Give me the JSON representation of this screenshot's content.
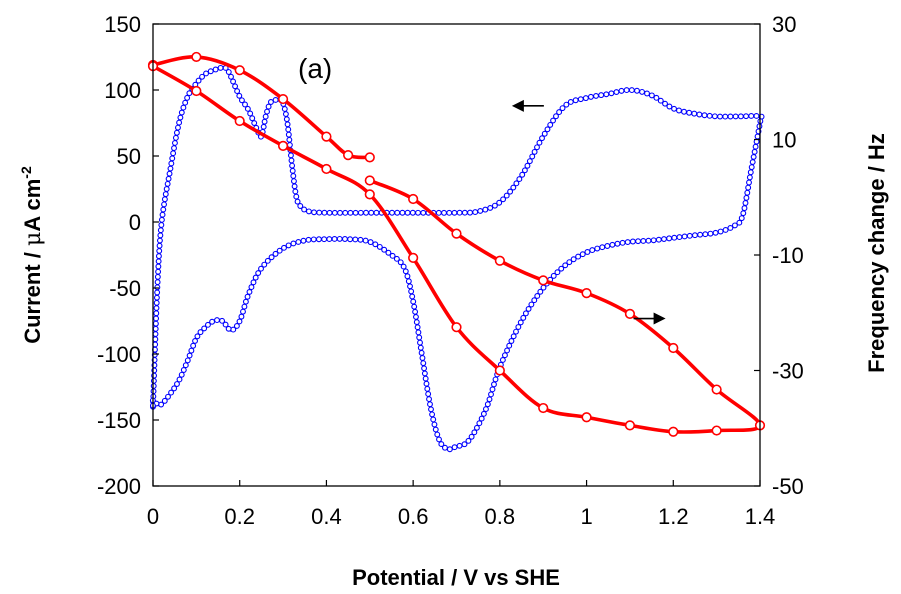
{
  "chart_data": {
    "type": "line",
    "panel_label": "(a)",
    "xlabel": "Potential / V vs SHE",
    "ylabel": {
      "prefix": "Current / ",
      "mu": "μ",
      "unit": "A cm",
      "sup": "-2"
    },
    "y2label": "Frequency change / Hz",
    "xlim": [
      0,
      1.4
    ],
    "ylim": [
      -200,
      150
    ],
    "y2lim": [
      -50,
      30
    ],
    "xticks": [
      "0",
      "0.2",
      "0.4",
      "0.6",
      "0.8",
      "1",
      "1.2",
      "1.4"
    ],
    "yticks": [
      "150",
      "100",
      "50",
      "0",
      "-50",
      "-100",
      "-150",
      "-200"
    ],
    "y2ticks": [
      "30",
      "10",
      "-10",
      "-30",
      "-50"
    ],
    "grid": false,
    "series": [
      {
        "axis": "left",
        "color": "#0000ff",
        "marker": "open-circle-small",
        "x": [
          0.0,
          0.01,
          0.02,
          0.04,
          0.06,
          0.08,
          0.1,
          0.12,
          0.14,
          0.16,
          0.17,
          0.18,
          0.2,
          0.22,
          0.24,
          0.25,
          0.26,
          0.27,
          0.28,
          0.29,
          0.3,
          0.31,
          0.32,
          0.33,
          0.34,
          0.36,
          0.4,
          0.5,
          0.6,
          0.7,
          0.75,
          0.8,
          0.85,
          0.9,
          0.95,
          1.0,
          1.05,
          1.1,
          1.15,
          1.2,
          1.25,
          1.3,
          1.35,
          1.4,
          1.4,
          1.38,
          1.36,
          1.34,
          1.3,
          1.25,
          1.2,
          1.15,
          1.1,
          1.05,
          1.0,
          0.95,
          0.9,
          0.85,
          0.8,
          0.77,
          0.74,
          0.72,
          0.7,
          0.68,
          0.66,
          0.64,
          0.62,
          0.6,
          0.58,
          0.55,
          0.5,
          0.45,
          0.4,
          0.35,
          0.3,
          0.25,
          0.22,
          0.2,
          0.18,
          0.16,
          0.14,
          0.12,
          0.1,
          0.08,
          0.06,
          0.04,
          0.02,
          0.01,
          0.0,
          0.0
        ],
        "y": [
          -140,
          -50,
          0,
          40,
          75,
          95,
          105,
          112,
          115,
          117,
          116,
          110,
          95,
          85,
          70,
          65,
          80,
          90,
          92,
          93,
          90,
          75,
          45,
          20,
          12,
          8,
          7,
          7,
          7,
          7,
          8,
          15,
          35,
          65,
          88,
          94,
          97,
          100,
          96,
          86,
          82,
          80,
          80,
          80,
          75,
          40,
          5,
          -3,
          -8,
          -10,
          -12,
          -14,
          -15,
          -18,
          -23,
          -33,
          -50,
          -75,
          -110,
          -140,
          -160,
          -168,
          -170,
          -172,
          -165,
          -140,
          -100,
          -60,
          -35,
          -25,
          -15,
          -13,
          -13,
          -14,
          -20,
          -35,
          -55,
          -75,
          -82,
          -75,
          -75,
          -80,
          -88,
          -105,
          -120,
          -130,
          -138,
          -138,
          -135,
          -140
        ]
      },
      {
        "axis": "right",
        "color": "#ff0000",
        "marker": "open-circle-large",
        "x": [
          0.0,
          0.1,
          0.2,
          0.3,
          0.4,
          0.45,
          0.5
        ],
        "y": [
          22.9,
          24.3,
          22.0,
          17.0,
          10.5,
          7.3,
          6.9
        ]
      },
      {
        "axis": "right",
        "color": "#ff0000",
        "marker": "open-circle-large",
        "x": [
          0.5,
          0.6,
          0.7,
          0.8,
          0.9,
          1.0,
          1.1,
          1.2,
          1.3,
          1.4,
          1.3,
          1.2,
          1.1,
          1.0,
          0.9,
          0.8,
          0.7,
          0.6,
          0.5,
          0.4,
          0.3,
          0.2,
          0.1,
          0.0
        ],
        "y": [
          2.9,
          -0.3,
          -6.3,
          -11.0,
          -14.4,
          -16.6,
          -20.2,
          -26.1,
          -33.3,
          -39.5,
          -40.4,
          -40.6,
          -39.5,
          -38.1,
          -36.5,
          -30.0,
          -22.5,
          -10.5,
          0.5,
          4.9,
          8.9,
          13.2,
          18.4,
          22.7
        ]
      }
    ],
    "annotations": [
      {
        "type": "arrow",
        "direction": "left",
        "x": 0.86,
        "y": 88,
        "axis": "left"
      },
      {
        "type": "arrow",
        "direction": "right",
        "x": 1.15,
        "y": -21,
        "axis": "right"
      }
    ]
  }
}
